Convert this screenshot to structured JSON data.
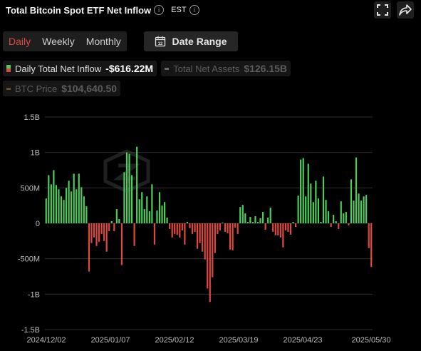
{
  "header": {
    "title": "Total Bitcoin Spot ETF Net Inflow",
    "timezone": "EST"
  },
  "periods": [
    {
      "label": "Daily",
      "active": true
    },
    {
      "label": "Weekly",
      "active": false
    },
    {
      "label": "Monthly",
      "active": false
    }
  ],
  "date_range_label": "Date Range",
  "date_range_icon_text": "12",
  "legend": [
    {
      "label": "Daily Total Net Inflow",
      "value": "-$616.22M",
      "color": "#4ccc5a",
      "active": true
    },
    {
      "label": "Total Net Assets",
      "value": "$126.15B",
      "color": "#6a6a6a",
      "active": false
    },
    {
      "label": "BTC Price",
      "value": "$104,640.50",
      "color": "#6b4a2a",
      "active": false
    }
  ],
  "colors": {
    "positive": "#4ccc5a",
    "negative": "#e0483e",
    "grid": "#2e2e2e"
  },
  "chart_data": {
    "type": "bar",
    "x_unit": "trading day",
    "x_range": [
      "2024/12/02",
      "2025/05/30"
    ],
    "x_ticks": [
      "2024/12/02",
      "2025/01/07",
      "2025/02/12",
      "2025/03/19",
      "2025/04/23",
      "2025/05/30"
    ],
    "y_ticks": [
      "1.5B",
      "1B",
      "500M",
      "0",
      "-500M",
      "-1B",
      "-1.5B"
    ],
    "ylim": [
      -1500,
      1500
    ],
    "y_unit": "USD millions",
    "grid": true,
    "series": [
      {
        "values": [
          350,
          680,
          550,
          750,
          540,
          480,
          380,
          330,
          500,
          600,
          450,
          700,
          480,
          700,
          510,
          380,
          240,
          -680,
          -280,
          -200,
          -320,
          -260,
          -150,
          -250,
          -400,
          -110,
          30,
          -110,
          200,
          60,
          -590,
          720,
          1000,
          980,
          680,
          -320,
          1080,
          340,
          440,
          200,
          380,
          170,
          550,
          -300,
          180,
          440,
          250,
          300,
          80,
          -80,
          -200,
          -150,
          -160,
          -200,
          -100,
          -300,
          20,
          -70,
          -150,
          -120,
          -360,
          -280,
          -400,
          -510,
          -920,
          -1110,
          -760,
          -420,
          -150,
          -100,
          10,
          -120,
          -140,
          -370,
          -380,
          -60,
          -150,
          230,
          260,
          140,
          20,
          90,
          20,
          100,
          20,
          70,
          160,
          -90,
          80,
          220,
          -120,
          -170,
          -170,
          -200,
          -340,
          -100,
          -120,
          -160,
          20,
          -50,
          390,
          900,
          920,
          380,
          840,
          560,
          300,
          600,
          350,
          20,
          660,
          330,
          170,
          -50,
          120,
          30,
          -80,
          310,
          140,
          160,
          -30,
          620,
          320,
          930,
          420,
          320,
          380,
          400,
          -350,
          -616
        ]
      }
    ]
  }
}
